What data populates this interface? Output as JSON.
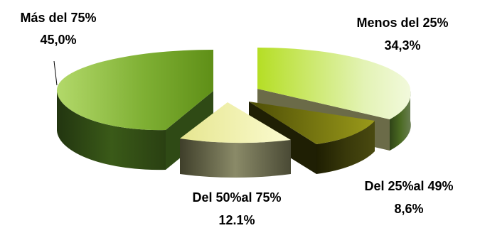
{
  "chart_data": {
    "type": "pie",
    "style": "3d-exploded",
    "slices": [
      {
        "label": "Menos del 25%",
        "value_label": "34,3%",
        "value": 34.3,
        "color": "#a6cf2a"
      },
      {
        "label": "Del 25%al 49%",
        "value_label": "8,6%",
        "value": 8.6,
        "color": "#7a7a12"
      },
      {
        "label": "Del 50%al 75%",
        "value_label": "12.1%",
        "value": 12.1,
        "color": "#f2f2a6"
      },
      {
        "label": "Más del 75%",
        "value_label": "45,0%",
        "value": 45.0,
        "color": "#6f9a22"
      }
    ],
    "legend": "none"
  }
}
